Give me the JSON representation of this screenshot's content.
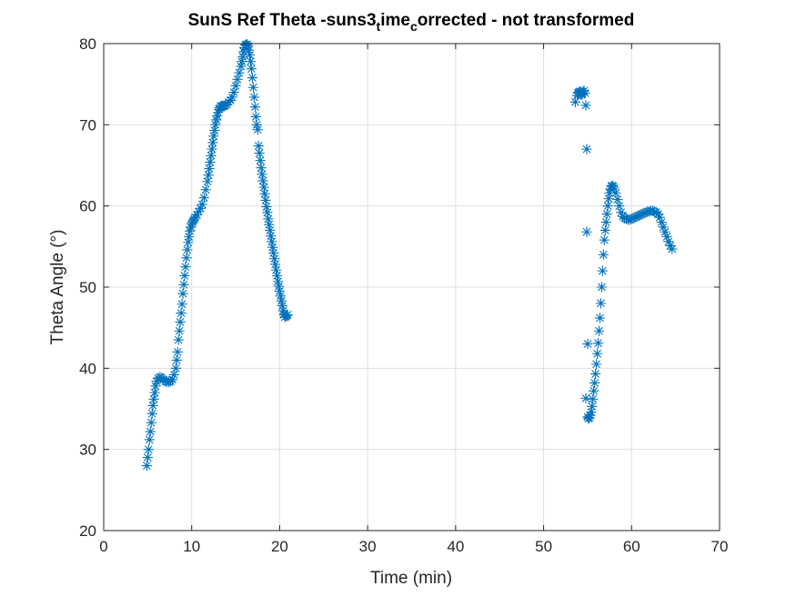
{
  "chart_data": {
    "type": "scatter",
    "title": "SunS Ref Theta -suns3",
    "title_sub1": "t",
    "title_mid": "ime",
    "title_sub2": "c",
    "title_end": "orrected - not transformed",
    "xlabel": "Time (min)",
    "ylabel": "Theta Angle (°)",
    "xlim": [
      0,
      70
    ],
    "ylim": [
      20,
      80
    ],
    "xticks": [
      "0",
      "10",
      "20",
      "30",
      "40",
      "50",
      "60",
      "70"
    ],
    "yticks": [
      "20",
      "30",
      "40",
      "50",
      "60",
      "70",
      "80"
    ],
    "grid": true,
    "marker": "asterisk",
    "color": "#0072bd",
    "series": [
      {
        "x": [
          4.9,
          5.0,
          5.1,
          5.2,
          5.3,
          5.4,
          5.5,
          5.6,
          5.7,
          5.8,
          5.9,
          6.0,
          6.2,
          6.4,
          6.6,
          6.8,
          7.0,
          7.2,
          7.4,
          7.6,
          7.8,
          8.0,
          8.2,
          8.3,
          8.4,
          8.5,
          8.6,
          8.7,
          8.8,
          8.9,
          9.0,
          9.1,
          9.2,
          9.3,
          9.4,
          9.5,
          9.6,
          9.7,
          9.8,
          9.9,
          10.0,
          10.1,
          10.2,
          10.3,
          10.4,
          10.6,
          10.8,
          11.0,
          11.2,
          11.4,
          11.6,
          11.8,
          11.9,
          12.0,
          12.1,
          12.2,
          12.3,
          12.4,
          12.5,
          12.6,
          12.7,
          12.8,
          12.9,
          13.0,
          13.1,
          13.2,
          13.3,
          13.4,
          13.5,
          13.6,
          13.7,
          13.8,
          14.0,
          14.2,
          14.4,
          14.6,
          14.8,
          15.0,
          15.2,
          15.4,
          15.6,
          15.7,
          15.8,
          15.9,
          16.0,
          16.1,
          16.2,
          16.3,
          16.4,
          16.5,
          16.6,
          16.7,
          16.8,
          16.9,
          17.0,
          17.1,
          17.2,
          17.3,
          17.4,
          17.5,
          17.6,
          17.7,
          17.8,
          17.9,
          18.0,
          18.1,
          18.2,
          18.3,
          18.4,
          18.5,
          18.6,
          18.7,
          18.8,
          18.9,
          19.0,
          19.1,
          19.2,
          19.3,
          19.4,
          19.5,
          19.6,
          19.7,
          19.8,
          19.9,
          20.0,
          20.1,
          20.2,
          20.3,
          20.4,
          20.5,
          20.6,
          20.7,
          20.8,
          20.9
        ],
        "y": [
          28.0,
          29.0,
          30.0,
          31.2,
          32.2,
          33.3,
          34.4,
          35.4,
          36.2,
          37.0,
          37.8,
          38.4,
          38.8,
          38.9,
          38.8,
          38.6,
          38.4,
          38.3,
          38.3,
          38.4,
          38.6,
          39.2,
          40.0,
          41.0,
          42.0,
          43.5,
          44.6,
          45.7,
          46.8,
          47.9,
          49.2,
          50.3,
          51.4,
          52.5,
          53.6,
          54.6,
          55.5,
          56.2,
          56.9,
          57.4,
          57.8,
          58.0,
          58.2,
          58.4,
          58.6,
          58.9,
          59.3,
          59.7,
          60.2,
          61.0,
          62.0,
          63.0,
          63.8,
          64.6,
          65.4,
          66.2,
          67.0,
          67.8,
          68.6,
          69.3,
          70.0,
          70.6,
          71.1,
          71.5,
          71.9,
          72.1,
          72.3,
          72.3,
          72.3,
          72.3,
          72.3,
          72.4,
          72.5,
          72.8,
          73.0,
          73.4,
          74.0,
          74.8,
          75.6,
          76.4,
          77.2,
          77.8,
          78.4,
          79.0,
          79.5,
          79.8,
          79.9,
          79.9,
          79.7,
          79.2,
          78.6,
          77.8,
          76.9,
          75.8,
          74.6,
          73.4,
          72.2,
          71.0,
          70.0,
          69.4,
          67.4,
          66.5,
          65.6,
          64.7,
          63.9,
          63.1,
          62.3,
          61.5,
          60.7,
          59.9,
          59.2,
          58.4,
          57.7,
          57.0,
          56.3,
          55.6,
          54.9,
          54.2,
          53.5,
          52.8,
          52.1,
          51.4,
          50.7,
          50.1,
          49.5,
          48.9,
          48.3,
          47.7,
          47.1,
          46.6,
          46.3,
          46.4,
          46.5,
          46.6
        ],
        "x2": [
          53.6,
          53.8,
          53.9,
          54.0,
          54.1,
          54.2,
          54.3,
          54.4,
          54.5,
          54.6,
          54.7,
          54.8,
          54.9,
          54.9,
          55.0,
          54.8,
          55.0,
          55.1,
          55.2,
          55.3,
          55.4,
          55.5,
          55.6,
          55.7,
          55.8,
          55.9,
          56.0,
          56.1,
          56.2,
          56.3,
          56.4,
          56.5,
          56.6,
          56.7,
          56.8,
          56.9,
          57.0,
          57.1,
          57.2,
          57.3,
          57.4,
          57.5,
          57.6,
          57.7,
          57.8,
          57.9,
          58.0,
          58.2,
          58.4,
          58.6,
          58.8,
          59.0,
          59.2,
          59.4,
          59.6,
          59.8,
          60.0,
          60.2,
          60.4,
          60.6,
          60.8,
          61.0,
          61.2,
          61.4,
          61.6,
          61.8,
          62.0,
          62.2,
          62.4,
          62.6,
          62.8,
          63.0,
          63.2,
          63.4,
          63.6,
          63.8,
          64.0,
          64.2,
          64.4,
          64.6
        ],
        "y2": [
          72.8,
          73.6,
          73.9,
          74.0,
          74.1,
          73.9,
          73.7,
          73.8,
          74.1,
          74.2,
          73.9,
          72.4,
          67.0,
          56.8,
          43.0,
          36.3,
          34.0,
          33.8,
          33.9,
          34.2,
          34.6,
          35.3,
          36.2,
          37.2,
          38.2,
          39.3,
          40.5,
          41.8,
          43.1,
          44.6,
          46.2,
          48.0,
          50.0,
          52.0,
          54.0,
          55.8,
          57.0,
          58.0,
          59.0,
          60.0,
          60.9,
          61.6,
          62.1,
          62.4,
          62.5,
          62.4,
          62.2,
          61.6,
          60.8,
          60.0,
          59.2,
          58.7,
          58.5,
          58.4,
          58.3,
          58.3,
          58.4,
          58.5,
          58.6,
          58.7,
          58.8,
          58.9,
          59.0,
          59.1,
          59.2,
          59.3,
          59.3,
          59.4,
          59.4,
          59.3,
          59.2,
          59.0,
          58.6,
          58.0,
          57.4,
          56.8,
          56.2,
          55.6,
          55.1,
          54.7
        ]
      }
    ]
  }
}
